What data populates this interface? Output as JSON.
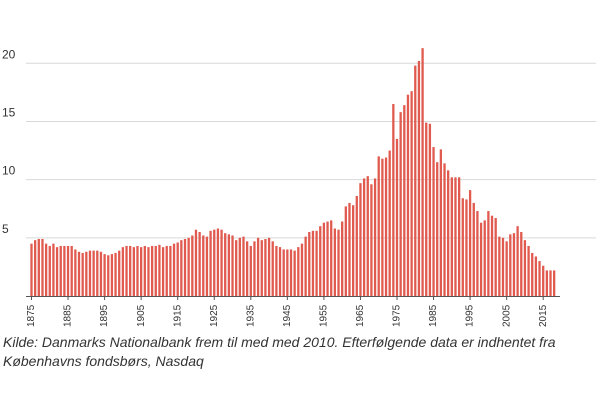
{
  "chart_data": {
    "type": "bar",
    "title": "",
    "xlabel": "",
    "ylabel": "",
    "ylim": [
      0,
      22
    ],
    "grid": "horizontal",
    "yticks": [
      5,
      10,
      15,
      20
    ],
    "xticks": [
      1875,
      1885,
      1895,
      1905,
      1915,
      1925,
      1935,
      1945,
      1955,
      1965,
      1975,
      1985,
      1995,
      2005,
      2015
    ],
    "bar_color": "#e05a4f",
    "x": [
      1875,
      1876,
      1877,
      1878,
      1879,
      1880,
      1881,
      1882,
      1883,
      1884,
      1885,
      1886,
      1887,
      1888,
      1889,
      1890,
      1891,
      1892,
      1893,
      1894,
      1895,
      1896,
      1897,
      1898,
      1899,
      1900,
      1901,
      1902,
      1903,
      1904,
      1905,
      1906,
      1907,
      1908,
      1909,
      1910,
      1911,
      1912,
      1913,
      1914,
      1915,
      1916,
      1917,
      1918,
      1919,
      1920,
      1921,
      1922,
      1923,
      1924,
      1925,
      1926,
      1927,
      1928,
      1929,
      1930,
      1931,
      1932,
      1933,
      1934,
      1935,
      1936,
      1937,
      1938,
      1939,
      1940,
      1941,
      1942,
      1943,
      1944,
      1945,
      1946,
      1947,
      1948,
      1949,
      1950,
      1951,
      1952,
      1953,
      1954,
      1955,
      1956,
      1957,
      1958,
      1959,
      1960,
      1961,
      1962,
      1963,
      1964,
      1965,
      1966,
      1967,
      1968,
      1969,
      1970,
      1971,
      1972,
      1973,
      1974,
      1975,
      1976,
      1977,
      1978,
      1979,
      1980,
      1981,
      1982,
      1983,
      1984,
      1985,
      1986,
      1987,
      1988,
      1989,
      1990,
      1991,
      1992,
      1993,
      1994,
      1995,
      1996,
      1997,
      1998,
      1999,
      2000,
      2001,
      2002,
      2003,
      2004,
      2005,
      2006,
      2007,
      2008,
      2009,
      2010,
      2011,
      2012,
      2013,
      2014,
      2015,
      2016,
      2017,
      2018
    ],
    "values": [
      4.5,
      4.8,
      4.9,
      4.9,
      4.5,
      4.3,
      4.5,
      4.2,
      4.3,
      4.3,
      4.3,
      4.3,
      4.0,
      3.8,
      3.7,
      3.8,
      3.9,
      3.9,
      3.9,
      3.8,
      3.6,
      3.5,
      3.6,
      3.7,
      3.9,
      4.2,
      4.3,
      4.3,
      4.2,
      4.3,
      4.2,
      4.3,
      4.2,
      4.3,
      4.3,
      4.4,
      4.2,
      4.3,
      4.3,
      4.5,
      4.6,
      4.8,
      4.9,
      5.0,
      5.2,
      5.7,
      5.5,
      5.2,
      5.1,
      5.6,
      5.7,
      5.8,
      5.7,
      5.4,
      5.3,
      5.2,
      4.8,
      5.0,
      5.1,
      4.7,
      4.3,
      4.7,
      5.0,
      4.8,
      4.9,
      5.0,
      4.7,
      4.3,
      4.2,
      4.0,
      4.0,
      4.0,
      3.9,
      4.2,
      4.5,
      5.1,
      5.5,
      5.6,
      5.6,
      6.0,
      6.3,
      6.4,
      6.5,
      5.8,
      5.7,
      6.4,
      7.7,
      8.0,
      7.8,
      8.6,
      9.7,
      10.1,
      10.3,
      9.6,
      10.1,
      12.0,
      11.8,
      11.9,
      12.5,
      16.5,
      13.5,
      15.8,
      16.4,
      17.3,
      17.6,
      19.8,
      20.2,
      21.3,
      14.9,
      14.8,
      12.8,
      11.5,
      12.6,
      11.4,
      10.8,
      10.2,
      10.2,
      10.2,
      8.4,
      8.3,
      9.1,
      8.0,
      7.3,
      6.3,
      6.5,
      7.3,
      6.9,
      6.7,
      5.1,
      5.0,
      4.7,
      5.3,
      5.4,
      6.0,
      5.5,
      4.8,
      4.3,
      3.7,
      3.4,
      3.0,
      2.6,
      2.2,
      2.2,
      2.2
    ]
  },
  "source_note": "Kilde: Danmarks Nationalbank frem til med med 2010. Efterfølgende data er indhentet fra Københavns fondsbørs, Nasdaq"
}
